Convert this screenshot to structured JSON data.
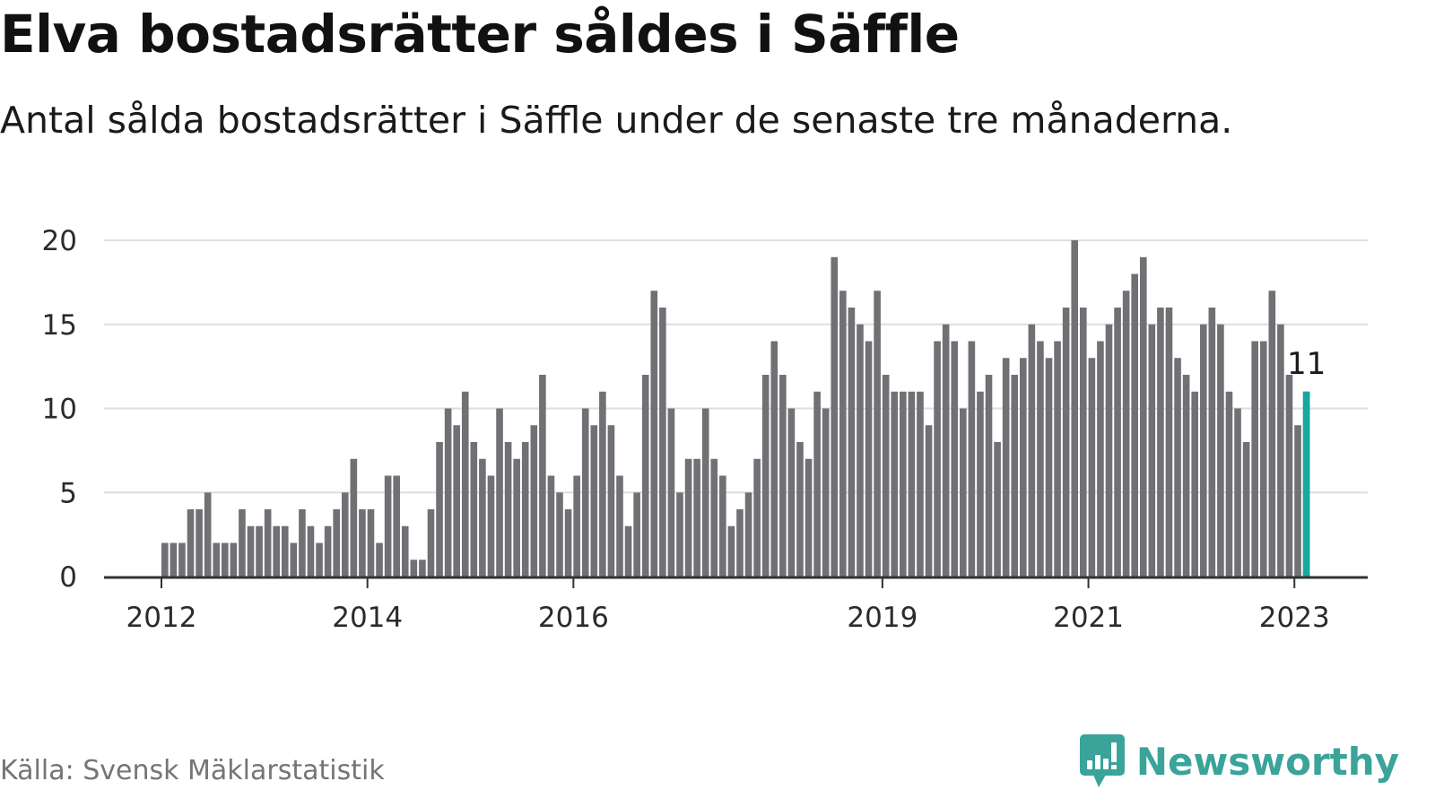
{
  "title": "Elva bostadsrätter såldes i Säffle",
  "subtitle": "Antal sålda bostadsrätter i Säffle under de senaste tre månaderna.",
  "source": "Källa: Svensk Mäklarstatistik",
  "brand": {
    "name": "Newsworthy",
    "icon": "newsworthy-logo-icon"
  },
  "colors": {
    "bar": "#707075",
    "highlight": "#17a8a0",
    "grid": "#dedede",
    "axis": "#333333",
    "brand": "#3aa39a"
  },
  "chart_data": {
    "type": "bar",
    "title": "Elva bostadsrätter såldes i Säffle",
    "subtitle": "Antal sålda bostadsrätter i Säffle under de senaste tre månaderna.",
    "xlabel": "",
    "ylabel": "",
    "ylim": [
      0,
      20
    ],
    "yticks": [
      0,
      5,
      10,
      15,
      20
    ],
    "xticks": [
      {
        "value": "2012-01",
        "label": "2012"
      },
      {
        "value": "2014-01",
        "label": "2014"
      },
      {
        "value": "2016-01",
        "label": "2016"
      },
      {
        "value": "2019-01",
        "label": "2019"
      },
      {
        "value": "2021-01",
        "label": "2021"
      },
      {
        "value": "2023-01",
        "label": "2023"
      }
    ],
    "grid": true,
    "legend": "none",
    "first_month": "2012-01",
    "values": [
      2,
      2,
      2,
      4,
      4,
      5,
      2,
      2,
      2,
      4,
      3,
      3,
      4,
      3,
      3,
      2,
      4,
      3,
      2,
      3,
      4,
      5,
      7,
      4,
      4,
      2,
      6,
      6,
      3,
      1,
      1,
      4,
      8,
      10,
      9,
      11,
      8,
      7,
      6,
      10,
      8,
      7,
      8,
      9,
      12,
      6,
      5,
      4,
      6,
      10,
      9,
      11,
      9,
      6,
      3,
      5,
      12,
      17,
      16,
      10,
      5,
      7,
      7,
      10,
      7,
      6,
      3,
      4,
      5,
      7,
      12,
      14,
      12,
      10,
      8,
      7,
      11,
      10,
      19,
      17,
      16,
      15,
      14,
      17,
      12,
      11,
      11,
      11,
      11,
      9,
      14,
      15,
      14,
      10,
      14,
      11,
      12,
      8,
      13,
      12,
      13,
      15,
      14,
      13,
      14,
      16,
      20,
      16,
      13,
      14,
      15,
      16,
      17,
      18,
      19,
      15,
      16,
      16,
      13,
      12,
      11,
      15,
      16,
      15,
      11,
      10,
      8,
      14,
      14,
      17,
      15,
      12,
      9,
      11
    ],
    "highlight": {
      "month": "2023-02",
      "value": 11,
      "label": "11"
    }
  }
}
